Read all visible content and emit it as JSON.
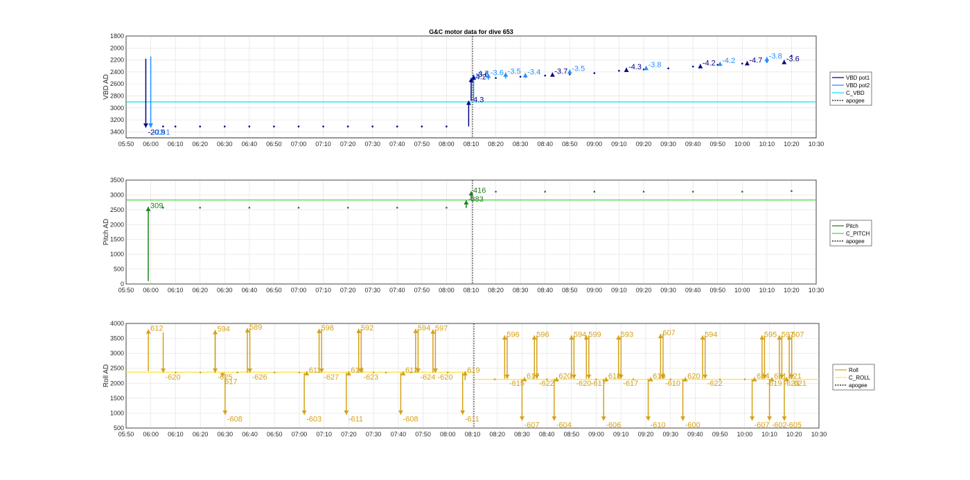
{
  "title": "G&C motor data for dive 653",
  "x_ticks": [
    "05:50",
    "06:00",
    "06:10",
    "06:20",
    "06:30",
    "06:40",
    "06:50",
    "07:00",
    "07:10",
    "07:20",
    "07:30",
    "07:40",
    "07:50",
    "08:00",
    "08:10",
    "08:20",
    "08:30",
    "08:40",
    "08:50",
    "09:00",
    "09:10",
    "09:20",
    "09:30",
    "09:40",
    "09:50",
    "10:00",
    "10:10",
    "10:20",
    "10:30"
  ],
  "colors": {
    "vbd_pot1": "#00008b",
    "vbd_pot2": "#1e90ff",
    "c_vbd": "#00e5e5",
    "pitch": "#1b7f1b",
    "c_pitch": "#3fd63f",
    "roll": "#d4a017",
    "c_roll": "#ffe34a",
    "apogee": "#000000"
  },
  "chart_data": [
    {
      "type": "scatter",
      "title": "G&C motor data for dive 653",
      "ylabel": "VBD AD",
      "ylim": [
        1800,
        3500
      ],
      "y_reversed": true,
      "yticks": [
        "1800",
        "2000",
        "2200",
        "2400",
        "2600",
        "2800",
        "3000",
        "3200",
        "3400"
      ],
      "xlim": [
        "05:50",
        "10:30"
      ],
      "grid": true,
      "legend": [
        "VBD pot1",
        "VBD pot2",
        "C_VBD",
        "apogee"
      ],
      "legend_position": "right",
      "reference_line": {
        "name": "C_VBD",
        "y": 2900
      },
      "apogee_x": "08:10",
      "moves": [
        {
          "x": "05:58",
          "from": 2180,
          "to": 3330,
          "label": "-20.9",
          "series": "VBD pot1"
        },
        {
          "x": "06:00",
          "from": 2140,
          "to": 3330,
          "label": "-22.1",
          "series": "VBD pot2"
        },
        {
          "x": "08:09",
          "from": 3310,
          "to": 2880,
          "label": "-4.3",
          "series": "VBD pot1"
        },
        {
          "x": "08:10",
          "from": 2880,
          "to": 2500,
          "label": "-4.2",
          "series": "VBD pot1"
        },
        {
          "x": "08:11",
          "from": 2880,
          "to": 2440,
          "label": "-4.7",
          "series": "VBD pot2"
        },
        {
          "x": "08:11",
          "from": 2500,
          "to": 2460,
          "label": "-3.6",
          "series": "VBD pot1"
        },
        {
          "x": "08:17",
          "from": 2530,
          "to": 2430,
          "label": "-3.6",
          "series": "VBD pot2"
        },
        {
          "x": "08:24",
          "from": 2510,
          "to": 2410,
          "label": "-3.5",
          "series": "VBD pot2"
        },
        {
          "x": "08:32",
          "from": 2500,
          "to": 2420,
          "label": "-3.4",
          "series": "VBD pot2"
        },
        {
          "x": "08:43",
          "from": 2470,
          "to": 2410,
          "label": "-3.7",
          "series": "VBD pot1"
        },
        {
          "x": "08:50",
          "from": 2440,
          "to": 2360,
          "label": "-3.5",
          "series": "VBD pot2"
        },
        {
          "x": "09:13",
          "from": 2380,
          "to": 2330,
          "label": "-4.3",
          "series": "VBD pot1"
        },
        {
          "x": "09:21",
          "from": 2360,
          "to": 2300,
          "label": "-3.8",
          "series": "VBD pot2"
        },
        {
          "x": "09:43",
          "from": 2330,
          "to": 2270,
          "label": "-4.2",
          "series": "VBD pot1"
        },
        {
          "x": "09:51",
          "from": 2280,
          "to": 2230,
          "label": "-4.2",
          "series": "VBD pot2"
        },
        {
          "x": "10:02",
          "from": 2270,
          "to": 2220,
          "label": "-4.7",
          "series": "VBD pot1"
        },
        {
          "x": "10:10",
          "from": 2250,
          "to": 2150,
          "label": "-3.8",
          "series": "VBD pot2"
        },
        {
          "x": "10:17",
          "from": 2240,
          "to": 2200,
          "label": "-3.6",
          "series": "VBD pot1"
        }
      ],
      "points": [
        {
          "x": "06:05",
          "y": 3310
        },
        {
          "x": "06:10",
          "y": 3310
        },
        {
          "x": "06:20",
          "y": 3310
        },
        {
          "x": "06:30",
          "y": 3310
        },
        {
          "x": "06:40",
          "y": 3310
        },
        {
          "x": "06:50",
          "y": 3310
        },
        {
          "x": "07:00",
          "y": 3310
        },
        {
          "x": "07:10",
          "y": 3310
        },
        {
          "x": "07:20",
          "y": 3310
        },
        {
          "x": "07:30",
          "y": 3310
        },
        {
          "x": "07:40",
          "y": 3310
        },
        {
          "x": "07:50",
          "y": 3310
        },
        {
          "x": "08:00",
          "y": 3310
        },
        {
          "x": "08:20",
          "y": 2500
        },
        {
          "x": "08:30",
          "y": 2480
        },
        {
          "x": "08:40",
          "y": 2460
        },
        {
          "x": "08:50",
          "y": 2440
        },
        {
          "x": "09:00",
          "y": 2420
        },
        {
          "x": "09:10",
          "y": 2380
        },
        {
          "x": "09:20",
          "y": 2360
        },
        {
          "x": "09:30",
          "y": 2340
        },
        {
          "x": "09:40",
          "y": 2310
        },
        {
          "x": "09:50",
          "y": 2280
        },
        {
          "x": "10:00",
          "y": 2260
        },
        {
          "x": "10:10",
          "y": 2230
        },
        {
          "x": "10:20",
          "y": 2130
        }
      ]
    },
    {
      "type": "scatter",
      "ylabel": "Pitch AD",
      "ylim": [
        0,
        3500
      ],
      "yticks": [
        "0",
        "500",
        "1000",
        "1500",
        "2000",
        "2500",
        "3000",
        "3500"
      ],
      "xlim": [
        "05:50",
        "10:30"
      ],
      "grid": true,
      "legend": [
        "Pitch",
        "C_PITCH",
        "apogee"
      ],
      "legend_position": "right",
      "reference_line": {
        "name": "C_PITCH",
        "y": 2830
      },
      "apogee_x": "08:10",
      "moves": [
        {
          "x": "05:59",
          "from": 100,
          "to": 2600,
          "label": "309"
        },
        {
          "x": "08:08",
          "from": 2560,
          "to": 2820,
          "label": "-383"
        },
        {
          "x": "08:10",
          "from": 2820,
          "to": 3120,
          "label": "416"
        }
      ],
      "points": [
        {
          "x": "06:05",
          "y": 2570
        },
        {
          "x": "06:20",
          "y": 2570
        },
        {
          "x": "06:40",
          "y": 2570
        },
        {
          "x": "07:00",
          "y": 2570
        },
        {
          "x": "07:20",
          "y": 2570
        },
        {
          "x": "07:40",
          "y": 2570
        },
        {
          "x": "08:00",
          "y": 2570
        },
        {
          "x": "08:20",
          "y": 3110
        },
        {
          "x": "08:40",
          "y": 3110
        },
        {
          "x": "09:00",
          "y": 3110
        },
        {
          "x": "09:20",
          "y": 3110
        },
        {
          "x": "09:40",
          "y": 3110
        },
        {
          "x": "10:00",
          "y": 3110
        },
        {
          "x": "10:20",
          "y": 3130
        }
      ]
    },
    {
      "type": "scatter",
      "ylabel": "Roll AD",
      "ylim": [
        500,
        4000
      ],
      "yticks": [
        "500",
        "1000",
        "1500",
        "2000",
        "2500",
        "3000",
        "3500",
        "4000"
      ],
      "xlim": [
        "05:50",
        "10:30"
      ],
      "grid": true,
      "legend": [
        "Roll",
        "C_ROLL",
        "apogee"
      ],
      "legend_position": "right",
      "apogee_x": "08:10",
      "reference_segments": [
        {
          "from": "05:50",
          "to": "08:10",
          "y": 2370
        },
        {
          "from": "08:10",
          "to": "10:30",
          "y": 2130
        }
      ],
      "moves": [
        {
          "x": "05:59",
          "from": 2400,
          "to": 3800,
          "label": "612"
        },
        {
          "x": "06:05",
          "from": 3700,
          "to": 2350,
          "label": "-620"
        },
        {
          "x": "06:26",
          "from": 2350,
          "to": 3780,
          "label": "594"
        },
        {
          "x": "06:26",
          "from": 3780,
          "to": 2350,
          "label": "-625"
        },
        {
          "x": "06:29",
          "from": 2350,
          "to": 2200,
          "label": "617"
        },
        {
          "x": "06:30",
          "from": 2300,
          "to": 950,
          "label": "-608"
        },
        {
          "x": "06:39",
          "from": 2350,
          "to": 3840,
          "label": "589"
        },
        {
          "x": "06:40",
          "from": 3840,
          "to": 2350,
          "label": "-626"
        },
        {
          "x": "07:02",
          "from": 2350,
          "to": 950,
          "label": "-603"
        },
        {
          "x": "07:03",
          "from": 2350,
          "to": 2400,
          "label": "611"
        },
        {
          "x": "07:08",
          "from": 2350,
          "to": 3820,
          "label": "598"
        },
        {
          "x": "07:09",
          "from": 3820,
          "to": 2350,
          "label": "-627"
        },
        {
          "x": "07:19",
          "from": 2350,
          "to": 950,
          "label": "-611"
        },
        {
          "x": "07:20",
          "from": 2350,
          "to": 2400,
          "label": "614"
        },
        {
          "x": "07:24",
          "from": 2350,
          "to": 3820,
          "label": "592"
        },
        {
          "x": "07:25",
          "from": 3820,
          "to": 2350,
          "label": "-623"
        },
        {
          "x": "07:41",
          "from": 2350,
          "to": 950,
          "label": "-608"
        },
        {
          "x": "07:42",
          "from": 2350,
          "to": 2400,
          "label": "613"
        },
        {
          "x": "07:47",
          "from": 2350,
          "to": 3820,
          "label": "594"
        },
        {
          "x": "07:48",
          "from": 3820,
          "to": 2350,
          "label": "-624"
        },
        {
          "x": "07:54",
          "from": 2350,
          "to": 3800,
          "label": "597"
        },
        {
          "x": "07:55",
          "from": 3800,
          "to": 2350,
          "label": "-620"
        },
        {
          "x": "08:06",
          "from": 2350,
          "to": 950,
          "label": "-611"
        },
        {
          "x": "08:07",
          "from": 2100,
          "to": 2400,
          "label": "619"
        },
        {
          "x": "08:23",
          "from": 2150,
          "to": 3600,
          "label": "596"
        },
        {
          "x": "08:24",
          "from": 3600,
          "to": 2150,
          "label": "-615"
        },
        {
          "x": "08:30",
          "from": 2150,
          "to": 750,
          "label": "-607"
        },
        {
          "x": "08:31",
          "from": 2150,
          "to": 2200,
          "label": "617"
        },
        {
          "x": "08:35",
          "from": 2150,
          "to": 3600,
          "label": "596"
        },
        {
          "x": "08:36",
          "from": 3600,
          "to": 2150,
          "label": "-622"
        },
        {
          "x": "08:43",
          "from": 2150,
          "to": 750,
          "label": "-604"
        },
        {
          "x": "08:44",
          "from": 2150,
          "to": 2200,
          "label": "620"
        },
        {
          "x": "08:50",
          "from": 2150,
          "to": 3600,
          "label": "594"
        },
        {
          "x": "08:51",
          "from": 3600,
          "to": 2150,
          "label": "-620"
        },
        {
          "x": "08:56",
          "from": 2150,
          "to": 3600,
          "label": "599"
        },
        {
          "x": "08:57",
          "from": 3600,
          "to": 2150,
          "label": "-617"
        },
        {
          "x": "09:03",
          "from": 2150,
          "to": 750,
          "label": "-606"
        },
        {
          "x": "09:04",
          "from": 2150,
          "to": 2200,
          "label": "618"
        },
        {
          "x": "09:09",
          "from": 2150,
          "to": 3600,
          "label": "593"
        },
        {
          "x": "09:10",
          "from": 3600,
          "to": 2150,
          "label": "-617"
        },
        {
          "x": "09:21",
          "from": 2150,
          "to": 750,
          "label": "-610"
        },
        {
          "x": "09:22",
          "from": 2150,
          "to": 2200,
          "label": "618"
        },
        {
          "x": "09:26",
          "from": 2150,
          "to": 3650,
          "label": "607"
        },
        {
          "x": "09:27",
          "from": 3650,
          "to": 2150,
          "label": "-610"
        },
        {
          "x": "09:35",
          "from": 2150,
          "to": 750,
          "label": "-600"
        },
        {
          "x": "09:36",
          "from": 2150,
          "to": 2200,
          "label": "620"
        },
        {
          "x": "09:43",
          "from": 2150,
          "to": 3600,
          "label": "594"
        },
        {
          "x": "09:44",
          "from": 3600,
          "to": 2150,
          "label": "-622"
        },
        {
          "x": "10:03",
          "from": 2150,
          "to": 750,
          "label": "-607"
        },
        {
          "x": "10:04",
          "from": 2150,
          "to": 2200,
          "label": "624"
        },
        {
          "x": "10:07",
          "from": 2150,
          "to": 3600,
          "label": "595"
        },
        {
          "x": "10:08",
          "from": 3600,
          "to": 2150,
          "label": "-619"
        },
        {
          "x": "10:10",
          "from": 2150,
          "to": 750,
          "label": "-602"
        },
        {
          "x": "10:11",
          "from": 2150,
          "to": 2200,
          "label": "621"
        },
        {
          "x": "10:14",
          "from": 2150,
          "to": 3600,
          "label": "597"
        },
        {
          "x": "10:15",
          "from": 3600,
          "to": 2150,
          "label": "-623"
        },
        {
          "x": "10:16",
          "from": 2150,
          "to": 750,
          "label": "-605"
        },
        {
          "x": "10:17",
          "from": 2150,
          "to": 2200,
          "label": "621"
        },
        {
          "x": "10:18",
          "from": 2150,
          "to": 3600,
          "label": "607"
        },
        {
          "x": "10:19",
          "from": 3600,
          "to": 2150,
          "label": "621"
        }
      ],
      "points": [
        {
          "x": "06:10",
          "y": 2360
        },
        {
          "x": "06:20",
          "y": 2360
        },
        {
          "x": "06:35",
          "y": 2360
        },
        {
          "x": "06:50",
          "y": 2360
        },
        {
          "x": "07:00",
          "y": 2360
        },
        {
          "x": "07:30",
          "y": 2360
        },
        {
          "x": "07:35",
          "y": 2360
        },
        {
          "x": "07:45",
          "y": 2360
        },
        {
          "x": "08:00",
          "y": 2360
        },
        {
          "x": "08:19",
          "y": 2130
        },
        {
          "x": "08:40",
          "y": 2130
        },
        {
          "x": "09:00",
          "y": 2130
        },
        {
          "x": "09:15",
          "y": 2130
        },
        {
          "x": "09:30",
          "y": 2130
        },
        {
          "x": "09:50",
          "y": 2130
        },
        {
          "x": "10:00",
          "y": 2130
        }
      ]
    }
  ]
}
